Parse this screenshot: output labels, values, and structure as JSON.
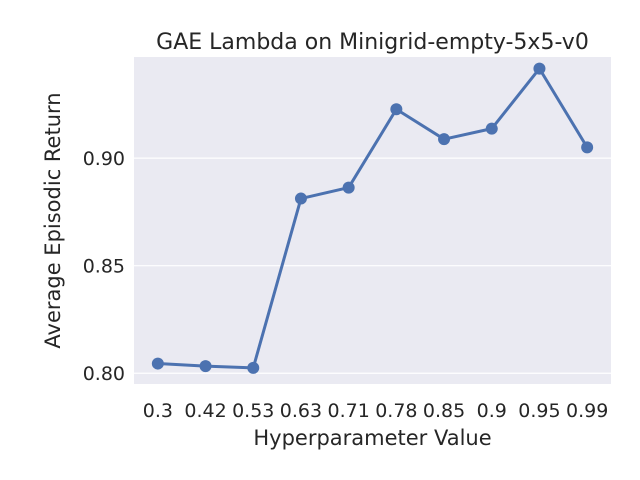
{
  "chart_data": {
    "type": "line",
    "title": "GAE Lambda on Minigrid-empty-5x5-v0",
    "xlabel": "Hyperparameter Value",
    "ylabel": "Average Episodic Return",
    "categories": [
      "0.3",
      "0.42",
      "0.53",
      "0.63",
      "0.71",
      "0.78",
      "0.85",
      "0.9",
      "0.95",
      "0.99"
    ],
    "series": [
      {
        "values": [
          0.8045,
          0.8033,
          0.8025,
          0.8812,
          0.8863,
          0.9227,
          0.9088,
          0.9137,
          0.9416,
          0.905
        ]
      }
    ],
    "yticks": [
      0.8,
      0.85,
      0.9
    ],
    "ytick_labels": [
      "0.80",
      "0.85",
      "0.90"
    ],
    "ylim": [
      0.795,
      0.947
    ],
    "grid": true,
    "colors": {
      "line": "#4c72b0",
      "plot_background": "#eaeaf2",
      "grid": "#ffffff"
    }
  }
}
